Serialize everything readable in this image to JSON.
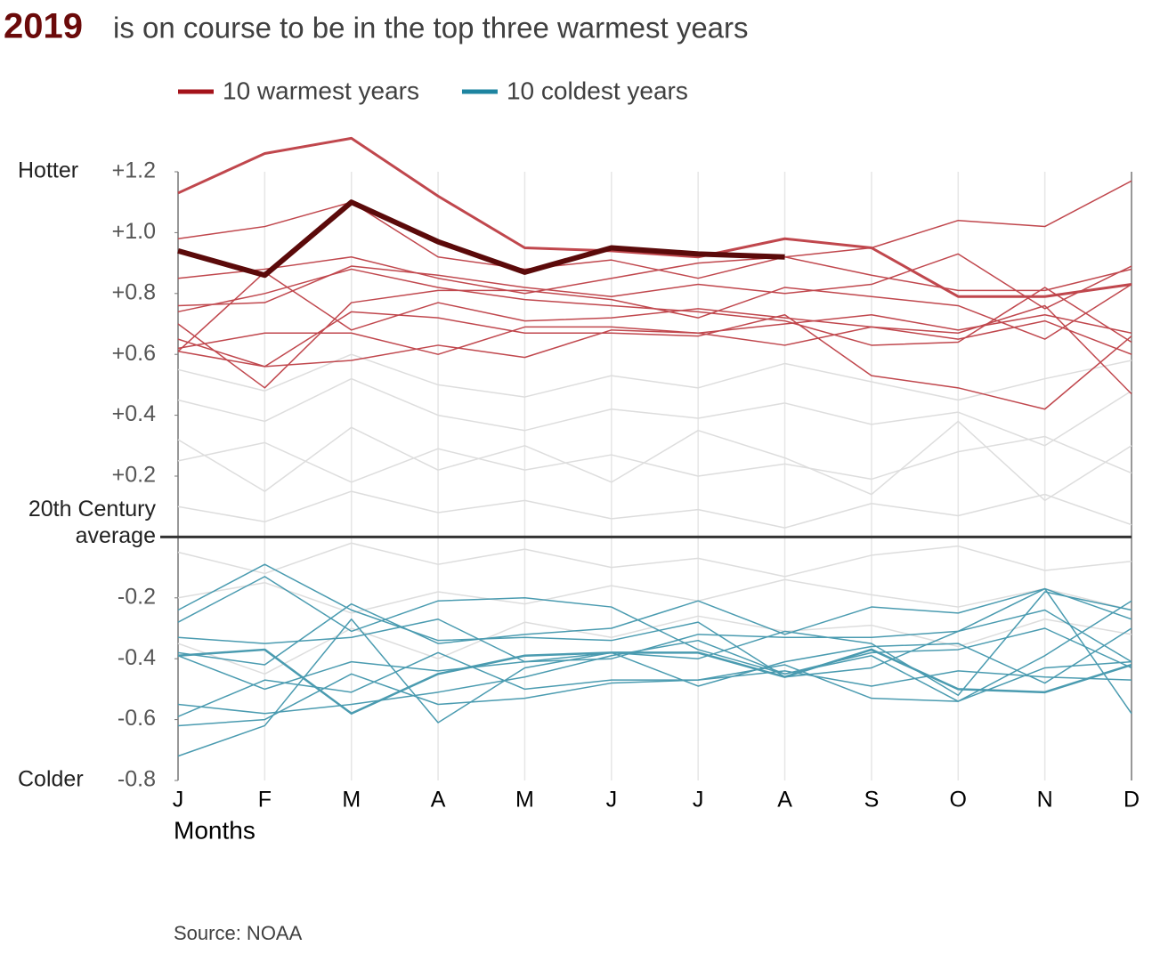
{
  "chart_data": {
    "type": "line",
    "title_highlight": "2019",
    "title": "is on course to be in the top three warmest years",
    "x_label": "Months",
    "source": "Source: NOAA",
    "categories": [
      "J",
      "F",
      "M",
      "A",
      "M",
      "J",
      "J",
      "A",
      "S",
      "O",
      "N",
      "D"
    ],
    "ylim": [
      -0.8,
      1.2
    ],
    "yticks": [
      {
        "value": 1.2,
        "label": "+1.2"
      },
      {
        "value": 1.0,
        "label": "+1.0"
      },
      {
        "value": 0.8,
        "label": "+0.8"
      },
      {
        "value": 0.6,
        "label": "+0.6"
      },
      {
        "value": 0.4,
        "label": "+0.4"
      },
      {
        "value": 0.2,
        "label": "+0.2"
      },
      -0.2,
      -0.4,
      -0.6,
      -0.8
    ],
    "baseline": {
      "value": 0,
      "label_lines": [
        "20th Century",
        "average"
      ]
    },
    "annotations": [
      {
        "text": "Hotter",
        "y": 1.2
      },
      {
        "text": "Colder",
        "y": -0.8
      }
    ],
    "legend": [
      {
        "label": "10 warmest years",
        "color": "#a4121a"
      },
      {
        "label": "10 coldest years",
        "color": "#1d84a0"
      }
    ],
    "grid": true,
    "series": [
      {
        "color": "#dddddd",
        "width": 1.5,
        "values": [
          0.45,
          0.38,
          0.52,
          0.4,
          0.35,
          0.42,
          0.39,
          0.44,
          0.37,
          0.41,
          0.3,
          0.48
        ]
      },
      {
        "color": "#dddddd",
        "width": 1.5,
        "values": [
          0.25,
          0.31,
          0.18,
          0.29,
          0.22,
          0.27,
          0.2,
          0.24,
          0.19,
          0.28,
          0.33,
          0.21
        ]
      },
      {
        "color": "#dddddd",
        "width": 1.5,
        "values": [
          0.1,
          0.05,
          0.15,
          0.08,
          0.12,
          0.06,
          0.09,
          0.03,
          0.11,
          0.07,
          0.14,
          0.04
        ]
      },
      {
        "color": "#dddddd",
        "width": 1.5,
        "values": [
          -0.05,
          -0.12,
          -0.02,
          -0.09,
          -0.04,
          -0.1,
          -0.07,
          -0.13,
          -0.06,
          -0.03,
          -0.11,
          -0.08
        ]
      },
      {
        "color": "#dddddd",
        "width": 1.5,
        "values": [
          -0.2,
          -0.15,
          -0.25,
          -0.18,
          -0.22,
          -0.16,
          -0.21,
          -0.14,
          -0.19,
          -0.23,
          -0.17,
          -0.24
        ]
      },
      {
        "color": "#dddddd",
        "width": 1.5,
        "values": [
          0.55,
          0.48,
          0.6,
          0.5,
          0.46,
          0.53,
          0.49,
          0.57,
          0.51,
          0.45,
          0.52,
          0.58
        ]
      },
      {
        "color": "#dddddd",
        "width": 1.5,
        "values": [
          -0.35,
          -0.45,
          -0.3,
          -0.4,
          -0.28,
          -0.33,
          -0.26,
          -0.31,
          -0.29,
          -0.36,
          -0.27,
          -0.32
        ]
      },
      {
        "color": "#dddddd",
        "width": 1.5,
        "values": [
          0.32,
          0.15,
          0.36,
          0.22,
          0.3,
          0.18,
          0.35,
          0.26,
          0.14,
          0.38,
          0.12,
          0.3
        ]
      },
      {
        "color": "#4a9bb0",
        "width": 2.5,
        "values": [
          -0.39,
          -0.37,
          -0.58,
          -0.45,
          -0.39,
          -0.38,
          -0.38,
          -0.46,
          -0.37,
          -0.5,
          -0.51,
          -0.42
        ]
      },
      {
        "color": "#4a9bb0",
        "width": 1.5,
        "values": [
          -0.24,
          -0.09,
          -0.24,
          -0.34,
          -0.33,
          -0.34,
          -0.28,
          -0.46,
          -0.43,
          -0.31,
          -0.17,
          -0.27
        ]
      },
      {
        "color": "#4a9bb0",
        "width": 1.5,
        "values": [
          -0.28,
          -0.13,
          -0.31,
          -0.21,
          -0.2,
          -0.23,
          -0.37,
          -0.45,
          -0.38,
          -0.37,
          -0.3,
          -0.43
        ]
      },
      {
        "color": "#4a9bb0",
        "width": 1.5,
        "values": [
          -0.33,
          -0.35,
          -0.33,
          -0.27,
          -0.41,
          -0.38,
          -0.4,
          -0.31,
          -0.35,
          -0.52,
          -0.18,
          -0.24
        ]
      },
      {
        "color": "#4a9bb0",
        "width": 1.5,
        "values": [
          -0.38,
          -0.42,
          -0.22,
          -0.35,
          -0.32,
          -0.3,
          -0.21,
          -0.32,
          -0.23,
          -0.25,
          -0.17,
          -0.58
        ]
      },
      {
        "color": "#4a9bb0",
        "width": 1.5,
        "values": [
          -0.55,
          -0.58,
          -0.55,
          -0.51,
          -0.46,
          -0.39,
          -0.34,
          -0.45,
          -0.39,
          -0.54,
          -0.43,
          -0.41
        ]
      },
      {
        "color": "#4a9bb0",
        "width": 1.5,
        "values": [
          -0.59,
          -0.47,
          -0.51,
          -0.38,
          -0.5,
          -0.47,
          -0.47,
          -0.42,
          -0.53,
          -0.54,
          -0.39,
          -0.21
        ]
      },
      {
        "color": "#4a9bb0",
        "width": 1.5,
        "values": [
          -0.62,
          -0.6,
          -0.45,
          -0.55,
          -0.53,
          -0.48,
          -0.47,
          -0.44,
          -0.49,
          -0.44,
          -0.46,
          -0.47
        ]
      },
      {
        "color": "#4a9bb0",
        "width": 1.5,
        "values": [
          -0.72,
          -0.62,
          -0.27,
          -0.61,
          -0.43,
          -0.38,
          -0.49,
          -0.41,
          -0.36,
          -0.35,
          -0.48,
          -0.3
        ]
      },
      {
        "color": "#4a9bb0",
        "width": 1.5,
        "values": [
          -0.39,
          -0.5,
          -0.41,
          -0.44,
          -0.41,
          -0.4,
          -0.32,
          -0.33,
          -0.33,
          -0.31,
          -0.24,
          -0.41
        ]
      },
      {
        "color": "#c0474d",
        "width": 3,
        "values": [
          1.13,
          1.26,
          1.31,
          1.12,
          0.95,
          0.94,
          0.92,
          0.98,
          0.95,
          0.79,
          0.79,
          0.83
        ]
      },
      {
        "color": "#c0474d",
        "width": 1.5,
        "values": [
          0.98,
          1.02,
          1.1,
          0.92,
          0.88,
          0.91,
          0.85,
          0.92,
          0.95,
          1.04,
          1.02,
          1.17
        ]
      },
      {
        "color": "#c0474d",
        "width": 1.5,
        "values": [
          0.85,
          0.88,
          0.92,
          0.85,
          0.8,
          0.85,
          0.9,
          0.92,
          0.86,
          0.81,
          0.81,
          0.88
        ]
      },
      {
        "color": "#c0474d",
        "width": 1.5,
        "values": [
          0.76,
          0.77,
          0.89,
          0.86,
          0.82,
          0.79,
          0.83,
          0.8,
          0.83,
          0.93,
          0.75,
          0.89
        ]
      },
      {
        "color": "#c0474d",
        "width": 1.5,
        "values": [
          0.74,
          0.8,
          0.88,
          0.82,
          0.78,
          0.76,
          0.74,
          0.71,
          0.63,
          0.64,
          0.82,
          0.64
        ]
      },
      {
        "color": "#c0474d",
        "width": 1.5,
        "values": [
          0.61,
          0.87,
          0.68,
          0.77,
          0.71,
          0.72,
          0.75,
          0.72,
          0.69,
          0.67,
          0.76,
          0.47
        ]
      },
      {
        "color": "#c0474d",
        "width": 1.5,
        "values": [
          0.7,
          0.49,
          0.77,
          0.81,
          0.81,
          0.78,
          0.72,
          0.82,
          0.79,
          0.76,
          0.65,
          0.83
        ]
      },
      {
        "color": "#c0474d",
        "width": 1.5,
        "values": [
          0.62,
          0.67,
          0.67,
          0.6,
          0.69,
          0.69,
          0.67,
          0.7,
          0.73,
          0.68,
          0.73,
          0.67
        ]
      },
      {
        "color": "#c0474d",
        "width": 1.5,
        "values": [
          0.61,
          0.56,
          0.58,
          0.63,
          0.59,
          0.68,
          0.67,
          0.63,
          0.69,
          0.65,
          0.71,
          0.6
        ]
      },
      {
        "color": "#c0474d",
        "width": 1.5,
        "values": [
          0.65,
          0.56,
          0.74,
          0.72,
          0.67,
          0.67,
          0.66,
          0.73,
          0.53,
          0.49,
          0.42,
          0.66
        ]
      },
      {
        "color": "#5b0a0a",
        "width": 6,
        "values": [
          0.94,
          0.86,
          1.1,
          0.97,
          0.87,
          0.95,
          0.93,
          0.92,
          null,
          null,
          null,
          null
        ]
      }
    ]
  }
}
